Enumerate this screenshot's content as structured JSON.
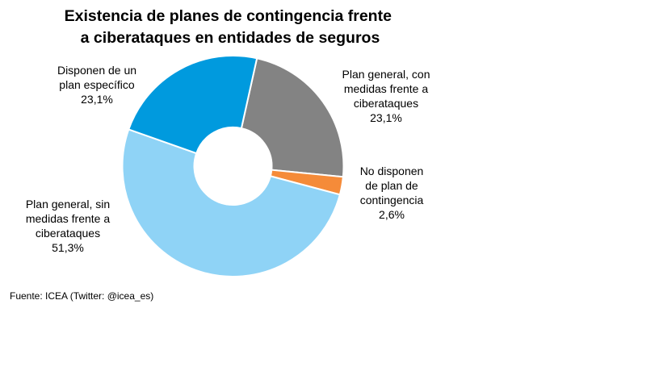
{
  "chart_data": {
    "type": "pie",
    "donut": true,
    "title_lines": [
      "Existencia de planes de contingencia frente",
      "a ciberataques en entidades de seguros"
    ],
    "slices": [
      {
        "label_lines": [
          "Plan general, con",
          "medidas frente a",
          "ciberataques"
        ],
        "value": 23.1,
        "value_label": "23,1%",
        "color": "#838383"
      },
      {
        "label_lines": [
          "No disponen",
          "de plan de",
          "contingencia"
        ],
        "value": 2.6,
        "value_label": "2,6%",
        "color": "#F58B39"
      },
      {
        "label_lines": [
          "Plan general, sin",
          "medidas frente a",
          "ciberataques"
        ],
        "value": 51.3,
        "value_label": "51,3%",
        "color": "#8FD3F6"
      },
      {
        "label_lines": [
          "Disponen de un",
          "plan específico"
        ],
        "value": 23.1,
        "value_label": "23,1%",
        "color": "#009ADE"
      }
    ],
    "source": "Fuente: ICEA (Twitter:  @icea_es)"
  }
}
